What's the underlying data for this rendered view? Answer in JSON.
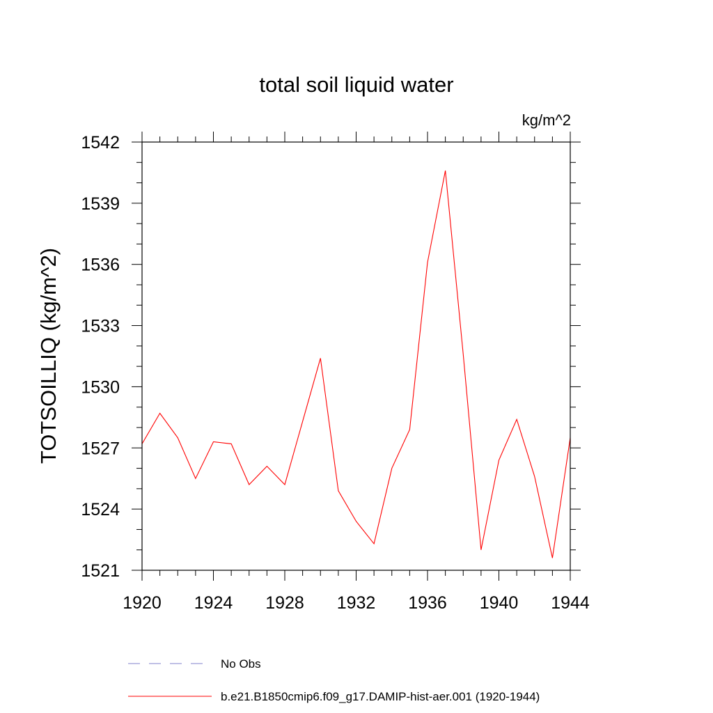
{
  "chart_data": {
    "type": "line",
    "title": "total soil liquid water",
    "units_label": "kg/m^2",
    "ylabel": "TOTSOILLIQ  (kg/m^2)",
    "xlabel": "",
    "xlim": [
      1920,
      1944
    ],
    "ylim": [
      1521,
      1542
    ],
    "x_ticks": [
      1920,
      1924,
      1928,
      1932,
      1936,
      1940,
      1944
    ],
    "y_ticks": [
      1521,
      1524,
      1527,
      1530,
      1533,
      1536,
      1539,
      1542
    ],
    "x_minor_step": 1,
    "y_minor_step": 1,
    "grid": false,
    "legend_position": "bottom",
    "series": [
      {
        "name": "b.e21.B1850cmip6.f09_g17.DAMIP-hist-aer.001 (1920-1944)",
        "color": "#ff0000",
        "dash": "solid",
        "x": [
          1920,
          1921,
          1922,
          1923,
          1924,
          1925,
          1926,
          1927,
          1928,
          1929,
          1930,
          1931,
          1932,
          1933,
          1934,
          1935,
          1936,
          1937,
          1938,
          1939,
          1940,
          1941,
          1942,
          1943,
          1944
        ],
        "y": [
          1527.2,
          1528.7,
          1527.5,
          1525.5,
          1527.3,
          1527.2,
          1525.2,
          1526.1,
          1525.2,
          1528.3,
          1531.4,
          1524.9,
          1523.4,
          1522.3,
          1526.0,
          1527.9,
          1536.1,
          1540.6,
          1531.6,
          1522.0,
          1526.4,
          1528.4,
          1525.6,
          1521.6,
          1527.5
        ]
      }
    ],
    "legend_entries": [
      {
        "label": "No Obs",
        "color": "#8080cc",
        "dash": "dashed"
      },
      {
        "label": "b.e21.B1850cmip6.f09_g17.DAMIP-hist-aer.001 (1920-1944)",
        "color": "#ff0000",
        "dash": "solid"
      }
    ]
  }
}
